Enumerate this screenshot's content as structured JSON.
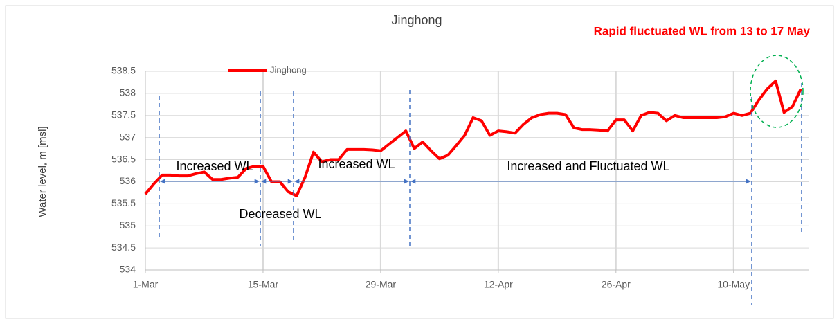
{
  "chart_data": {
    "type": "line",
    "title": "Jinghong",
    "y_label": "Water level, m [msl]",
    "annotations": [
      "Increased WL",
      "Decreased WL",
      "Increased WL",
      "Increased and Fluctuated WL",
      "Rapid fluctuated WL from 13 to 17 May"
    ],
    "x": [
      0,
      1,
      2,
      3,
      4,
      5,
      6,
      7,
      8,
      9,
      10,
      11,
      12,
      13,
      14,
      15,
      16,
      17,
      18,
      19,
      20,
      21,
      22,
      23,
      24,
      25,
      26,
      27,
      28,
      29,
      30,
      31,
      32,
      33,
      34,
      35,
      36,
      37,
      38,
      39,
      40,
      41,
      42,
      43,
      44,
      45,
      46,
      47,
      48,
      49,
      50,
      51,
      52,
      53,
      54,
      55,
      56,
      57,
      58,
      59,
      60,
      61,
      62,
      63,
      64,
      65,
      66,
      67,
      68,
      69,
      70,
      71,
      72,
      73,
      74,
      75,
      76,
      77,
      78
    ],
    "series": [
      {
        "name": "Jinghong",
        "color": "#ff0000",
        "values": [
          535.72,
          535.95,
          536.15,
          536.15,
          536.13,
          536.13,
          536.18,
          536.22,
          536.05,
          536.05,
          536.08,
          536.1,
          536.3,
          536.35,
          536.35,
          536.0,
          536.0,
          535.77,
          535.68,
          536.1,
          536.67,
          536.45,
          536.5,
          536.5,
          536.73,
          536.73,
          536.73,
          536.72,
          536.7,
          536.85,
          537.0,
          537.15,
          536.75,
          536.9,
          536.7,
          536.52,
          536.6,
          536.82,
          537.05,
          537.45,
          537.38,
          537.05,
          537.15,
          537.13,
          537.1,
          537.3,
          537.45,
          537.52,
          537.55,
          537.55,
          537.52,
          537.22,
          537.18,
          537.18,
          537.17,
          537.15,
          537.4,
          537.4,
          537.15,
          537.5,
          537.57,
          537.55,
          537.38,
          537.5,
          537.45,
          537.45,
          537.45,
          537.45,
          537.45,
          537.47,
          537.55,
          537.5,
          537.55,
          537.85,
          538.1,
          538.28,
          537.57,
          537.7,
          538.1
        ]
      }
    ],
    "xlim": [
      0,
      79
    ],
    "xticks": [
      {
        "value": 0,
        "label": "1-Mar"
      },
      {
        "value": 14,
        "label": "15-Mar"
      },
      {
        "value": 28,
        "label": "29-Mar"
      },
      {
        "value": 42,
        "label": "12-Apr"
      },
      {
        "value": 56,
        "label": "26-Apr"
      },
      {
        "value": 70,
        "label": "10-May"
      }
    ],
    "ylim": [
      534,
      538.5
    ],
    "yticks": [
      534,
      534.5,
      535,
      535.5,
      536,
      536.5,
      537,
      537.5,
      538,
      538.5
    ],
    "grid": true,
    "legend": "top-left"
  }
}
